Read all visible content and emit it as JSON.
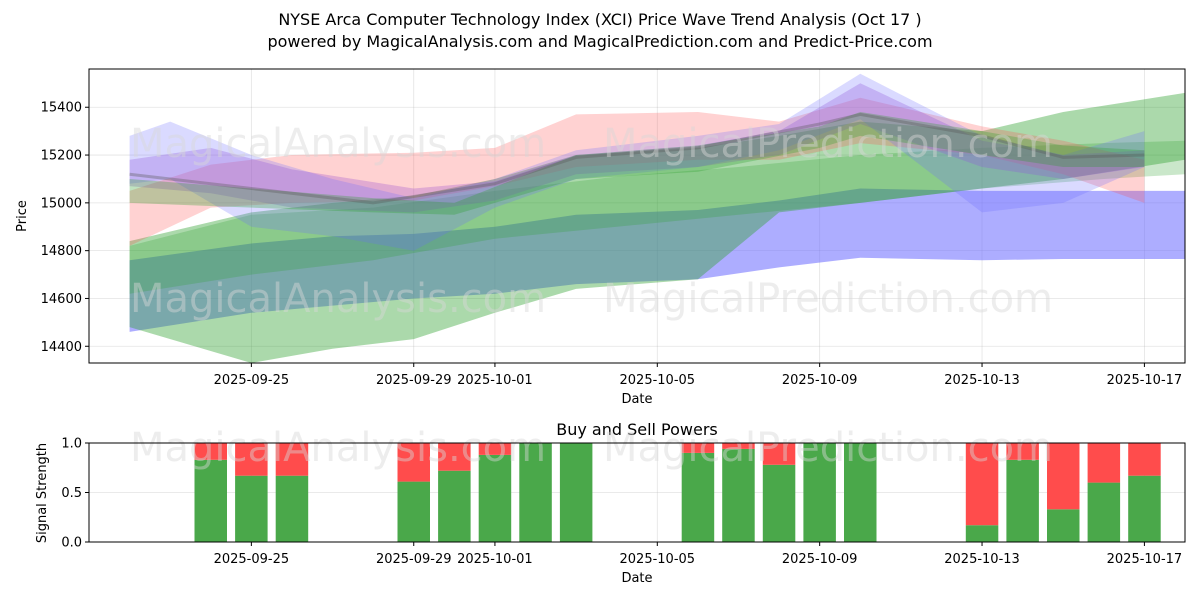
{
  "header": {
    "title_line1": "NYSE Arca Computer Technology Index (XCI) Price Wave Trend Analysis (Oct 17 )",
    "title_line2": "powered by MagicalAnalysis.com and MagicalPrediction.com and Predict-Price.com"
  },
  "watermarks": {
    "top_left": "MagicalAnalysis.com",
    "top_right": "MagicalPrediction.com",
    "bottom_left": "MagicalAnalysis.com",
    "bottom_right": "MagicalPrediction.com",
    "lower_left": "MagicalAnalysis.com",
    "lower_right": "MagicalPrediction.com"
  },
  "colors": {
    "blue": "#6a6aff",
    "green": "#2ca02c",
    "red": "#ff4c4c",
    "purple": "#9a4fd0",
    "buy": "#4aa84a",
    "sell": "#ff4c4c"
  },
  "chart_data": [
    {
      "type": "area",
      "title": "",
      "xlabel": "Date",
      "ylabel": "Price",
      "xlim": [
        "2025-09-21",
        "2025-10-18"
      ],
      "ylim": [
        14330,
        15560
      ],
      "xticks": [
        "2025-09-25",
        "2025-09-29",
        "2025-10-01",
        "2025-10-05",
        "2025-10-09",
        "2025-10-13",
        "2025-10-17"
      ],
      "yticks": [
        14400,
        14600,
        14800,
        15000,
        15200,
        15400
      ],
      "grid": true,
      "bands": [
        {
          "name": "blue band low",
          "color": "blue",
          "opacity": 0.55,
          "x": [
            "2025-09-22",
            "2025-09-25",
            "2025-09-27",
            "2025-09-29",
            "2025-10-01",
            "2025-10-03",
            "2025-10-06",
            "2025-10-08",
            "2025-10-10",
            "2025-10-13",
            "2025-10-15",
            "2025-10-18"
          ],
          "upper": [
            14760,
            14830,
            14860,
            14870,
            14900,
            14950,
            14970,
            15010,
            15060,
            15050,
            15050,
            15050
          ],
          "lower": [
            14460,
            14540,
            14570,
            14600,
            14620,
            14660,
            14680,
            14730,
            14770,
            14760,
            14765,
            14765
          ]
        },
        {
          "name": "green band main",
          "color": "green",
          "opacity": 0.4,
          "x": [
            "2025-09-22",
            "2025-09-25",
            "2025-09-27",
            "2025-09-29",
            "2025-10-01",
            "2025-10-03",
            "2025-10-06",
            "2025-10-08",
            "2025-10-10",
            "2025-10-13",
            "2025-10-15",
            "2025-10-18"
          ],
          "upper": [
            14840,
            14960,
            15000,
            15030,
            15100,
            15200,
            15230,
            15280,
            15340,
            15300,
            15380,
            15460
          ],
          "lower": [
            14480,
            14330,
            14390,
            14430,
            14540,
            14640,
            14680,
            14960,
            15000,
            15060,
            15100,
            15180
          ]
        },
        {
          "name": "green band light",
          "color": "green",
          "opacity": 0.25,
          "x": [
            "2025-09-22",
            "2025-09-25",
            "2025-09-28",
            "2025-10-01",
            "2025-10-04",
            "2025-10-07",
            "2025-10-10",
            "2025-10-13",
            "2025-10-16",
            "2025-10-18"
          ],
          "upper": [
            14820,
            14950,
            14980,
            15050,
            15110,
            15150,
            15200,
            15230,
            15250,
            15260
          ],
          "lower": [
            14620,
            14700,
            14760,
            14850,
            14900,
            14950,
            15000,
            15060,
            15100,
            15120
          ]
        },
        {
          "name": "red band",
          "color": "red",
          "opacity": 0.25,
          "x": [
            "2025-09-22",
            "2025-09-24",
            "2025-09-26",
            "2025-09-29",
            "2025-10-01",
            "2025-10-03",
            "2025-10-06",
            "2025-10-08",
            "2025-10-10",
            "2025-10-13",
            "2025-10-15",
            "2025-10-17"
          ],
          "upper": [
            15050,
            15160,
            15200,
            15210,
            15230,
            15370,
            15380,
            15340,
            15440,
            15320,
            15260,
            15180
          ],
          "lower": [
            14820,
            14980,
            15000,
            15010,
            15070,
            15150,
            15180,
            15180,
            15250,
            15200,
            15120,
            15000
          ]
        },
        {
          "name": "purple band",
          "color": "purple",
          "opacity": 0.3,
          "x": [
            "2025-09-22",
            "2025-09-24",
            "2025-09-26",
            "2025-09-29",
            "2025-10-01",
            "2025-10-03",
            "2025-10-06",
            "2025-10-08",
            "2025-10-10",
            "2025-10-13",
            "2025-10-15",
            "2025-10-17"
          ],
          "upper": [
            15180,
            15230,
            15140,
            15060,
            15090,
            15200,
            15240,
            15300,
            15500,
            15260,
            15200,
            15220
          ],
          "lower": [
            15070,
            15040,
            14980,
            14960,
            15010,
            15120,
            15150,
            15200,
            15330,
            15150,
            15100,
            15150
          ]
        },
        {
          "name": "blue band light",
          "color": "blue",
          "opacity": 0.25,
          "x": [
            "2025-09-22",
            "2025-09-23",
            "2025-09-25",
            "2025-09-27",
            "2025-09-29",
            "2025-10-01",
            "2025-10-03",
            "2025-10-06",
            "2025-10-08",
            "2025-10-10",
            "2025-10-13",
            "2025-10-15",
            "2025-10-17"
          ],
          "upper": [
            15280,
            15340,
            15200,
            15100,
            15020,
            15100,
            15220,
            15280,
            15330,
            15540,
            15280,
            15200,
            15300
          ],
          "lower": [
            15080,
            15100,
            14900,
            14860,
            14800,
            14980,
            15100,
            15150,
            15220,
            15350,
            14960,
            15000,
            15150
          ]
        },
        {
          "name": "olive band",
          "color": "green",
          "opacity": 0.3,
          "x": [
            "2025-09-22",
            "2025-09-25",
            "2025-09-28",
            "2025-09-30",
            "2025-10-03",
            "2025-10-06",
            "2025-10-09",
            "2025-10-10",
            "2025-10-13",
            "2025-10-15",
            "2025-10-17"
          ],
          "upper": [
            15100,
            15060,
            15020,
            15000,
            15200,
            15240,
            15320,
            15380,
            15300,
            15240,
            15220
          ],
          "lower": [
            15000,
            14980,
            14960,
            14950,
            15100,
            15130,
            15230,
            15280,
            15200,
            15150,
            15150
          ]
        }
      ],
      "price_line": {
        "x": [
          "2025-09-22",
          "2025-09-25",
          "2025-09-28",
          "2025-10-01",
          "2025-10-03",
          "2025-10-06",
          "2025-10-09",
          "2025-10-10",
          "2025-10-13",
          "2025-10-15",
          "2025-10-17"
        ],
        "y": [
          15120,
          15060,
          15000,
          15080,
          15190,
          15230,
          15330,
          15370,
          15280,
          15190,
          15200
        ]
      }
    },
    {
      "type": "bar",
      "title": "Buy and Sell Powers",
      "xlabel": "Date",
      "ylabel": "Signal Strength",
      "ylim": [
        0,
        1
      ],
      "yticks": [
        "0.0",
        "0.5",
        "1.0"
      ],
      "xticks": [
        "2025-09-25",
        "2025-09-29",
        "2025-10-01",
        "2025-10-05",
        "2025-10-09",
        "2025-10-13",
        "2025-10-17"
      ],
      "grid": true,
      "categories": [
        "2025-09-24",
        "2025-09-25",
        "2025-09-26",
        "2025-09-29",
        "2025-09-30",
        "2025-10-01",
        "2025-10-02",
        "2025-10-03",
        "2025-10-06",
        "2025-10-07",
        "2025-10-08",
        "2025-10-09",
        "2025-10-10",
        "2025-10-13",
        "2025-10-14",
        "2025-10-15",
        "2025-10-16",
        "2025-10-17"
      ],
      "series": [
        {
          "name": "Buy",
          "color": "buy",
          "values": [
            0.83,
            0.67,
            0.67,
            0.61,
            0.72,
            0.88,
            1.0,
            1.0,
            0.9,
            0.94,
            0.78,
            1.0,
            1.0,
            0.17,
            0.83,
            0.33,
            0.6,
            0.67
          ]
        },
        {
          "name": "Sell",
          "color": "sell",
          "values": [
            0.17,
            0.33,
            0.33,
            0.39,
            0.28,
            0.12,
            0.0,
            0.0,
            0.1,
            0.06,
            0.22,
            0.0,
            0.0,
            0.83,
            0.17,
            0.67,
            0.4,
            0.33
          ]
        }
      ]
    }
  ]
}
